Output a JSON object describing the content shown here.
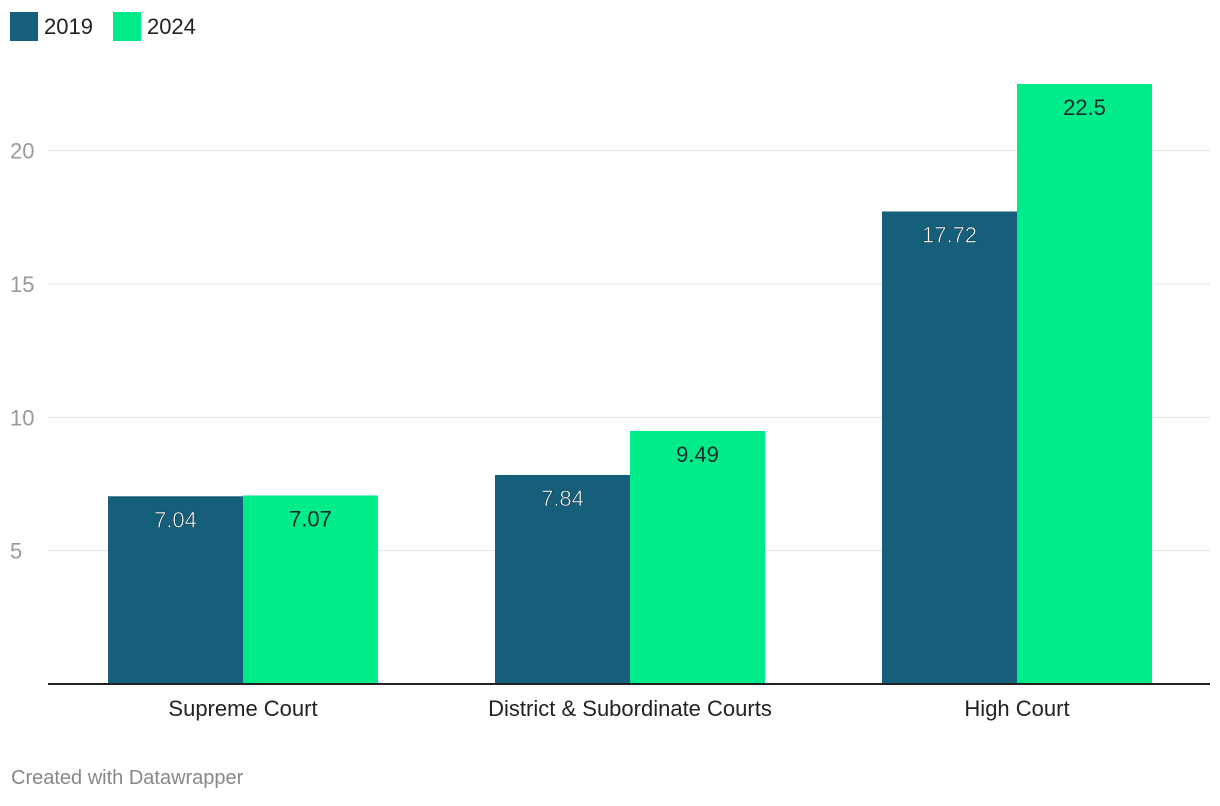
{
  "legend": [
    {
      "label": "2019",
      "color": "#165f7a"
    },
    {
      "label": "2024",
      "color": "#00ec8b"
    }
  ],
  "footer": {
    "text": "Created with Datawrapper"
  },
  "chart_data": {
    "type": "bar",
    "categories": [
      "Supreme Court",
      "District & Subordinate Courts",
      "High Court"
    ],
    "series": [
      {
        "name": "2019",
        "color": "#165f7a",
        "values": [
          7.04,
          7.84,
          17.72
        ]
      },
      {
        "name": "2024",
        "color": "#00ec8b",
        "values": [
          7.07,
          9.49,
          22.5
        ]
      }
    ],
    "y_ticks": [
      5,
      10,
      15,
      20
    ],
    "ylim": [
      0,
      22.5
    ],
    "grid": true,
    "legend_position": "top-left",
    "data_labels": true
  }
}
